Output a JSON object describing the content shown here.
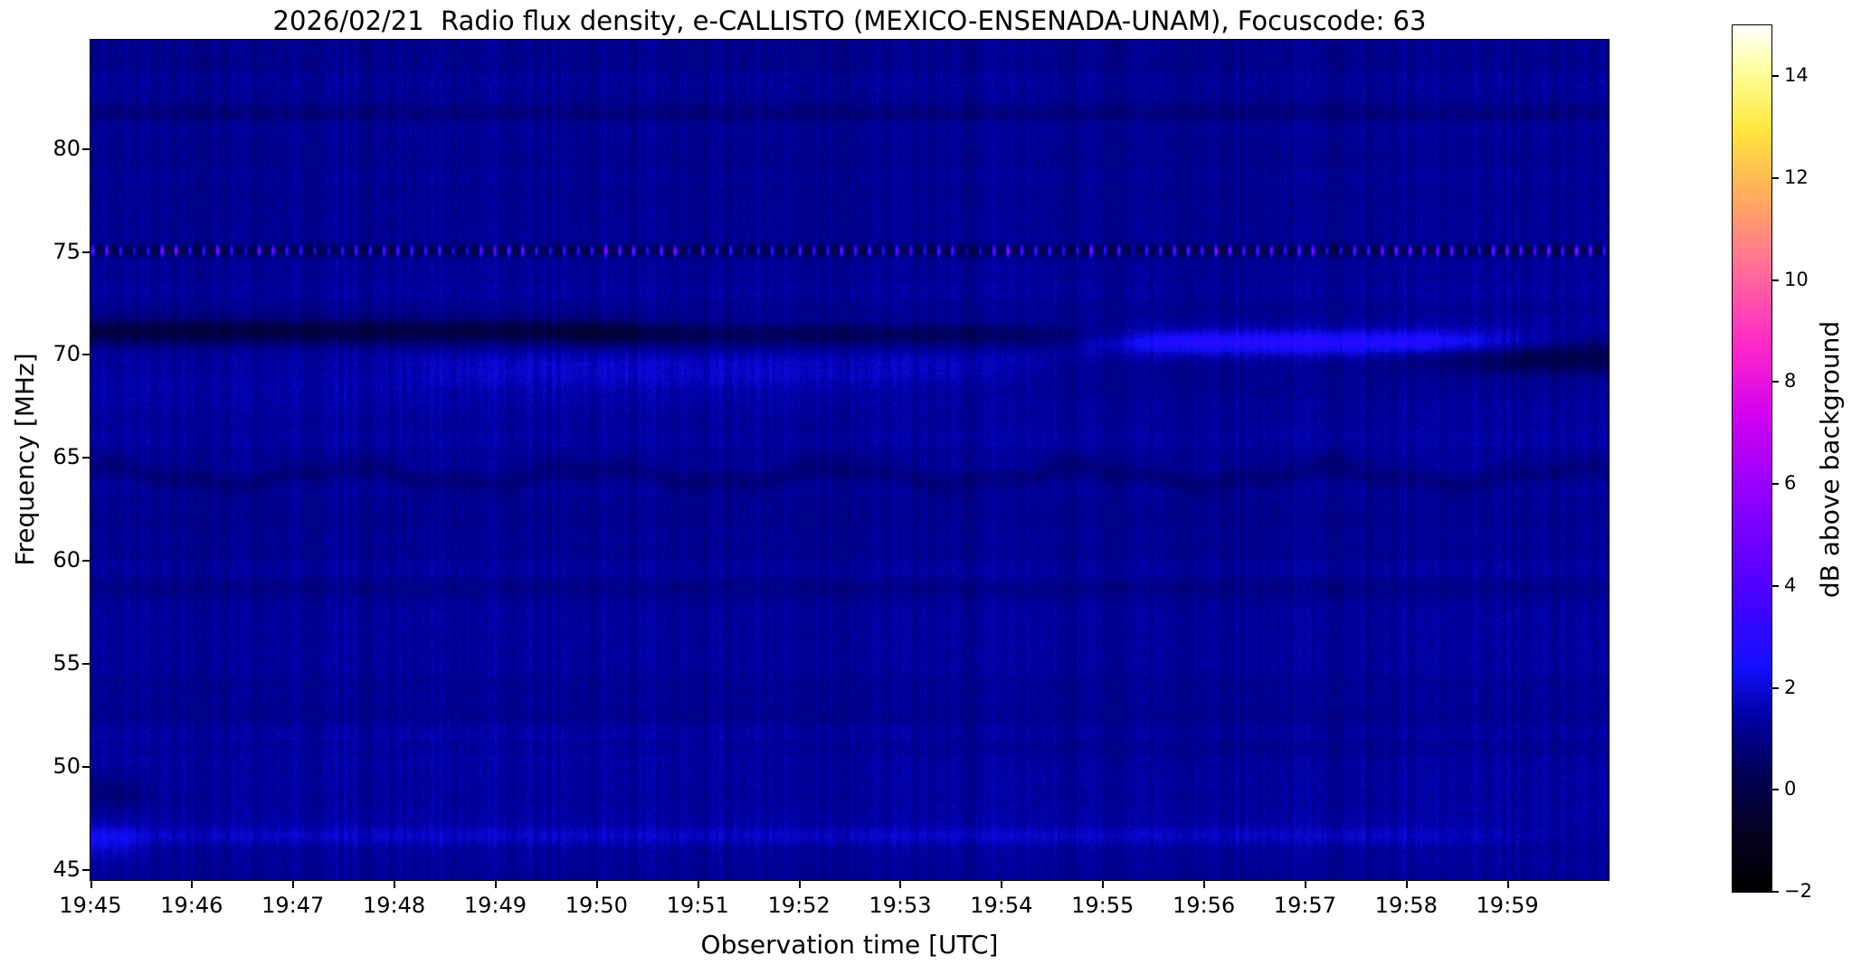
{
  "chart_data": {
    "type": "heatmap",
    "subtype": "radio-spectrogram",
    "title": "2026/02/21  Radio flux density, e-CALLISTO (MEXICO-ENSENADA-UNAM), Focuscode: 63",
    "xlabel": "Observation time [UTC]",
    "ylabel": "Frequency [MHz]",
    "time_start": "19:45",
    "time_end": "20:00",
    "duration_min": 15,
    "x_ticks": [
      {
        "label": "19:45",
        "t": 0
      },
      {
        "label": "19:46",
        "t": 1
      },
      {
        "label": "19:47",
        "t": 2
      },
      {
        "label": "19:48",
        "t": 3
      },
      {
        "label": "19:49",
        "t": 4
      },
      {
        "label": "19:50",
        "t": 5
      },
      {
        "label": "19:51",
        "t": 6
      },
      {
        "label": "19:52",
        "t": 7
      },
      {
        "label": "19:53",
        "t": 8
      },
      {
        "label": "19:54",
        "t": 9
      },
      {
        "label": "19:55",
        "t": 10
      },
      {
        "label": "19:56",
        "t": 11
      },
      {
        "label": "19:57",
        "t": 12
      },
      {
        "label": "19:58",
        "t": 13
      },
      {
        "label": "19:59",
        "t": 14
      }
    ],
    "y_range_mhz": [
      44.5,
      85.3
    ],
    "y_ticks": [
      {
        "label": "45",
        "f": 45
      },
      {
        "label": "50",
        "f": 50
      },
      {
        "label": "55",
        "f": 55
      },
      {
        "label": "60",
        "f": 60
      },
      {
        "label": "65",
        "f": 65
      },
      {
        "label": "70",
        "f": 70
      },
      {
        "label": "75",
        "f": 75
      },
      {
        "label": "80",
        "f": 80
      }
    ],
    "colorbar": {
      "label": "dB above background",
      "range": [
        -2,
        15
      ],
      "ticks": [
        {
          "label": "14",
          "v": 14
        },
        {
          "label": "12",
          "v": 12
        },
        {
          "label": "10",
          "v": 10
        },
        {
          "label": "8",
          "v": 8
        },
        {
          "label": "6",
          "v": 6
        },
        {
          "label": "4",
          "v": 4
        },
        {
          "label": "2",
          "v": 2
        },
        {
          "label": "0",
          "v": 0
        },
        {
          "label": "−2",
          "v": -2
        }
      ]
    },
    "colormap_stops": [
      [
        0.0,
        0,
        0,
        0
      ],
      [
        0.07,
        5,
        0,
        35
      ],
      [
        0.13,
        0,
        0,
        80
      ],
      [
        0.2,
        0,
        0,
        160
      ],
      [
        0.26,
        20,
        15,
        255
      ],
      [
        0.35,
        80,
        0,
        255
      ],
      [
        0.45,
        140,
        0,
        255
      ],
      [
        0.55,
        210,
        0,
        240
      ],
      [
        0.63,
        255,
        40,
        200
      ],
      [
        0.72,
        255,
        110,
        150
      ],
      [
        0.8,
        255,
        170,
        95
      ],
      [
        0.88,
        255,
        230,
        60
      ],
      [
        0.95,
        255,
        255,
        160
      ],
      [
        1.0,
        255,
        255,
        255
      ]
    ],
    "background_level_db": 1.25,
    "noise": {
      "column_amp": 0.33,
      "pixel_amp": 0.28,
      "pixel_amp_highband": 0.42,
      "row_amp": 0.1,
      "highband_mhz": 81.5
    },
    "rfi_line": {
      "freq_mhz": 75.05,
      "dip_db": -1.1,
      "dip_sigma_mhz": 0.3,
      "dot_sigma_mhz": 0.22,
      "dot_period_min": 0.137,
      "dot_duty": 0.35,
      "dot_amp_db_min": 2.0,
      "dot_amp_db_max": 6.8
    },
    "features": [
      {
        "name": "dark-absorption-band-early",
        "freq_mhz": 71.15,
        "sigma_mhz": 0.6,
        "amp_db": -1.35,
        "t_env_min": [
          0,
          0,
          4.5,
          6
        ]
      },
      {
        "name": "dark-absorption-band-mid",
        "freq_mhz": 71.0,
        "sigma_mhz": 0.55,
        "amp_db": -0.85,
        "t_env_min": [
          4.5,
          5,
          9,
          10.5
        ]
      },
      {
        "name": "bright-emission-band",
        "freq_mhz": 70.6,
        "sigma_mhz": 0.55,
        "amp_db": 1.7,
        "t_env_min": [
          9.5,
          10.8,
          13.2,
          14.8
        ]
      },
      {
        "name": "dark-band-right-edge",
        "freq_mhz": 69.85,
        "sigma_mhz": 0.7,
        "amp_db": -1.25,
        "t_env_min": [
          12.5,
          14.2,
          15,
          15
        ]
      },
      {
        "name": "faint-bright-band-below",
        "freq_mhz": 69.3,
        "sigma_mhz": 0.8,
        "amp_db": 0.45,
        "t_env_min": [
          2.5,
          4,
          8.5,
          10
        ]
      },
      {
        "name": "faint-bright-band-68",
        "freq_mhz": 68.6,
        "sigma_mhz": 1.1,
        "amp_db": 0.3,
        "t_env_min": [
          0,
          0,
          7,
          9
        ]
      },
      {
        "name": "dark-wavy-band-64",
        "freq_mhz": 64.1,
        "sigma_mhz": 0.55,
        "amp_db": -0.5,
        "t_env_min": [
          0,
          0,
          15,
          15
        ],
        "wave": {
          "amp_mhz": 0.35,
          "freq": 2.6,
          "phase": 1.2
        }
      },
      {
        "name": "dark-band-58",
        "freq_mhz": 58.6,
        "sigma_mhz": 0.45,
        "amp_db": -0.22,
        "t_env_min": [
          0,
          0,
          15,
          15
        ]
      },
      {
        "name": "bright-band-46",
        "freq_mhz": 46.6,
        "sigma_mhz": 0.55,
        "amp_db": 0.55,
        "t_env_min": [
          0,
          0,
          13,
          15
        ]
      },
      {
        "name": "faint-bright-band-51",
        "freq_mhz": 51.0,
        "sigma_mhz": 0.9,
        "amp_db": 0.15,
        "t_env_min": [
          0,
          0,
          6,
          9
        ]
      },
      {
        "name": "dark-line-top-82",
        "freq_mhz": 81.7,
        "sigma_mhz": 0.5,
        "amp_db": -0.3,
        "t_env_min": [
          0,
          0,
          15,
          15
        ]
      },
      {
        "name": "left-edge-bright-patch",
        "freq_mhz": 46.3,
        "sigma_mhz": 0.8,
        "amp_db": 0.6,
        "t_env_min": [
          0,
          0,
          0.3,
          0.6
        ]
      },
      {
        "name": "left-edge-dark-patch",
        "freq_mhz": 48.7,
        "sigma_mhz": 0.9,
        "amp_db": -0.5,
        "t_env_min": [
          0,
          0,
          0.35,
          0.7
        ]
      }
    ]
  }
}
